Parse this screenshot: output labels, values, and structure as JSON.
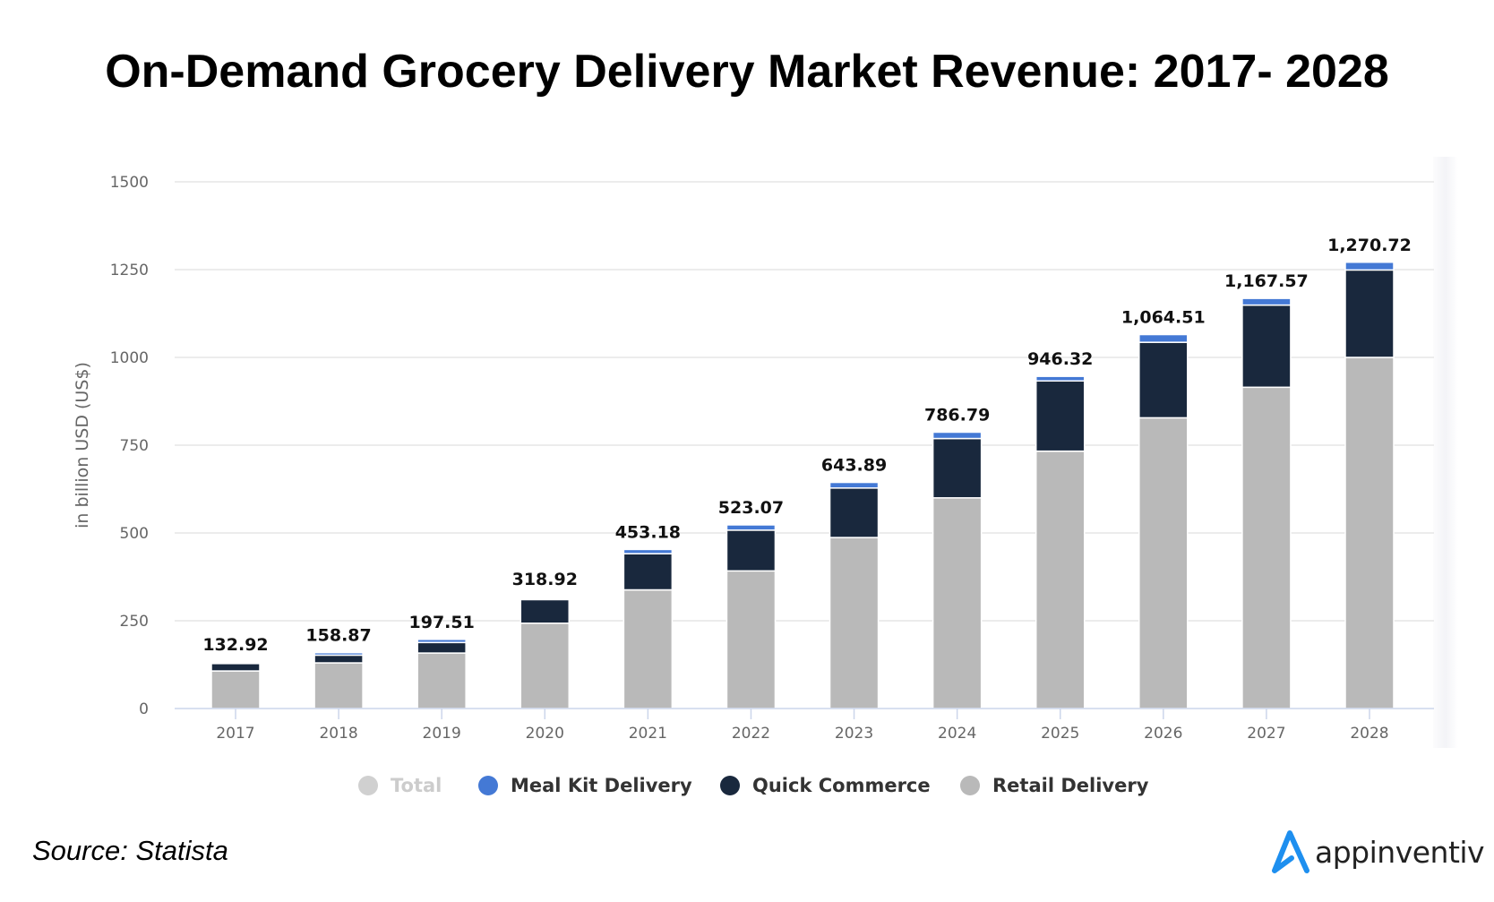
{
  "title": "On-Demand Grocery Delivery Market Revenue: 2017- 2028",
  "source": "Source: Statista",
  "logo": {
    "icon": "appinventiv-a-icon",
    "text": "appinventiv",
    "color": "#1E8FEF"
  },
  "colors": {
    "total": "#D0D0D0",
    "meal_kit": "#4479D5",
    "quick_commerce": "#19283D",
    "retail": "#B9B9B9",
    "grid": "#E6E6E6",
    "axis": "#CCD6EB"
  },
  "legend": [
    {
      "key": "total",
      "label": "Total",
      "active": false
    },
    {
      "key": "meal_kit",
      "label": "Meal Kit Delivery",
      "active": true
    },
    {
      "key": "quick_commerce",
      "label": "Quick Commerce",
      "active": true
    },
    {
      "key": "retail",
      "label": "Retail Delivery",
      "active": true
    }
  ],
  "chart_data": {
    "type": "bar",
    "stacked": true,
    "title": "On-Demand Grocery Delivery Market Revenue: 2017- 2028",
    "xlabel": "",
    "ylabel": "in billion USD (US$)",
    "ylim": [
      0,
      1500
    ],
    "yticks": [
      0,
      250,
      500,
      750,
      1000,
      1250,
      1500
    ],
    "grid": true,
    "legend_position": "bottom",
    "categories": [
      "2017",
      "2018",
      "2019",
      "2020",
      "2021",
      "2022",
      "2023",
      "2024",
      "2025",
      "2026",
      "2027",
      "2028"
    ],
    "series": [
      {
        "name": "Retail Delivery",
        "key": "retail",
        "values": [
          107,
          130,
          158,
          243,
          338,
          392,
          487,
          600,
          733,
          828,
          915,
          1000
        ]
      },
      {
        "name": "Quick Commerce",
        "key": "quick_commerce",
        "values": [
          21,
          22,
          30,
          67,
          103,
          116,
          141,
          169,
          200,
          215,
          234,
          249
        ]
      },
      {
        "name": "Meal Kit Delivery",
        "key": "meal_kit",
        "values": [
          5,
          7,
          9,
          9,
          12,
          15,
          16,
          18,
          13,
          22,
          19,
          22
        ]
      }
    ],
    "totals": [
      132.92,
      158.87,
      197.51,
      318.92,
      453.18,
      523.07,
      643.89,
      786.79,
      946.32,
      1064.51,
      1167.57,
      1270.72
    ],
    "total_labels": [
      "132.92",
      "158.87",
      "197.51",
      "318.92",
      "453.18",
      "523.07",
      "643.89",
      "786.79",
      "946.32",
      "1,064.51",
      "1,167.57",
      "1,270.72"
    ],
    "hidden_segments": {
      "meal_kit": [
        "2017",
        "2020"
      ]
    }
  }
}
